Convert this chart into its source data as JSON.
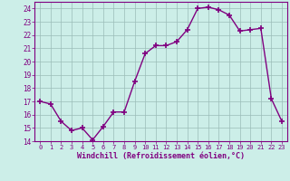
{
  "x": [
    0,
    1,
    2,
    3,
    4,
    5,
    6,
    7,
    8,
    9,
    10,
    11,
    12,
    13,
    14,
    15,
    16,
    17,
    18,
    19,
    20,
    21,
    22,
    23
  ],
  "y": [
    17.0,
    16.8,
    15.5,
    14.8,
    15.0,
    14.1,
    15.1,
    16.2,
    16.2,
    18.5,
    20.6,
    21.2,
    21.2,
    21.5,
    22.4,
    24.0,
    24.1,
    23.9,
    23.5,
    22.3,
    22.4,
    22.5,
    17.2,
    15.5
  ],
  "line_color": "#800080",
  "bg_color": "#cceee8",
  "grid_color": "#9bbcb8",
  "xlabel": "Windchill (Refroidissement éolien,°C)",
  "ylim": [
    14,
    24.5
  ],
  "xlim": [
    -0.5,
    23.5
  ],
  "yticks": [
    14,
    15,
    16,
    17,
    18,
    19,
    20,
    21,
    22,
    23,
    24
  ],
  "xticks": [
    0,
    1,
    2,
    3,
    4,
    5,
    6,
    7,
    8,
    9,
    10,
    11,
    12,
    13,
    14,
    15,
    16,
    17,
    18,
    19,
    20,
    21,
    22,
    23
  ],
  "marker": "+",
  "marker_size": 4,
  "line_width": 1.0,
  "tick_fontsize": 5.0,
  "xlabel_fontsize": 6.0
}
